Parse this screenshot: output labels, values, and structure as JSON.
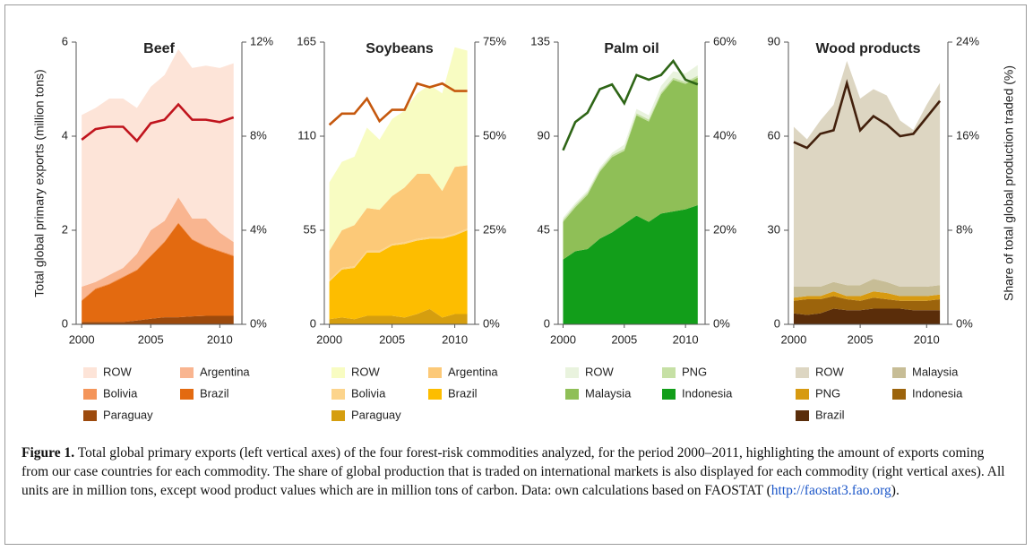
{
  "chart_data": [
    {
      "type": "area",
      "title": "Beef",
      "ylabel": "Total global primary exports (million tons)",
      "x": [
        2000,
        2001,
        2002,
        2003,
        2004,
        2005,
        2006,
        2007,
        2008,
        2009,
        2010,
        2011
      ],
      "xlim": [
        1999.6,
        2011.6
      ],
      "xticks": [
        2000,
        2005,
        2010
      ],
      "ylim": [
        0,
        6
      ],
      "yticks": [
        0,
        2,
        4,
        6
      ],
      "y2lim": [
        0,
        12
      ],
      "y2ticks": [
        {
          "value": 0,
          "label": "0%"
        },
        {
          "value": 4,
          "label": "4%"
        },
        {
          "value": 8,
          "label": "8%"
        },
        {
          "value": 12,
          "label": "12%"
        }
      ],
      "series": [
        {
          "name": "ROW",
          "color": "#fde4d8",
          "values": [
            3.65,
            3.7,
            3.75,
            3.6,
            3.1,
            3.05,
            3.1,
            3.15,
            3.2,
            3.25,
            3.5,
            3.8
          ]
        },
        {
          "name": "Argentina",
          "color": "#f9b590",
          "values": [
            0.28,
            0.13,
            0.18,
            0.18,
            0.33,
            0.53,
            0.43,
            0.53,
            0.43,
            0.58,
            0.38,
            0.28
          ]
        },
        {
          "name": "Bolivia",
          "color": "#f4955a",
          "values": [
            0.02,
            0.02,
            0.02,
            0.02,
            0.02,
            0.02,
            0.02,
            0.02,
            0.02,
            0.02,
            0.02,
            0.02
          ]
        },
        {
          "name": "Brazil",
          "color": "#e36a10",
          "values": [
            0.45,
            0.7,
            0.8,
            0.95,
            1.07,
            1.33,
            1.6,
            2.0,
            1.63,
            1.47,
            1.37,
            1.27
          ]
        },
        {
          "name": "Paraguay",
          "color": "#9c4a0d",
          "values": [
            0.05,
            0.05,
            0.05,
            0.05,
            0.08,
            0.12,
            0.15,
            0.15,
            0.17,
            0.18,
            0.18,
            0.18
          ]
        },
        {
          "axis": "y2",
          "color": "#c0141d",
          "values": [
            7.85,
            8.3,
            8.4,
            8.4,
            7.8,
            8.55,
            8.7,
            9.35,
            8.7,
            8.7,
            8.6,
            8.8
          ]
        }
      ]
    },
    {
      "type": "area",
      "title": "Soybeans",
      "x": [
        2000,
        2001,
        2002,
        2003,
        2004,
        2005,
        2006,
        2007,
        2008,
        2009,
        2010,
        2011
      ],
      "xlim": [
        1999.6,
        2011.6
      ],
      "xticks": [
        2000,
        2005,
        2010
      ],
      "ylim": [
        0,
        165
      ],
      "yticks": [
        0,
        55,
        110,
        165
      ],
      "y2lim": [
        0,
        75
      ],
      "y2ticks": [
        {
          "value": 0,
          "label": "0%"
        },
        {
          "value": 25,
          "label": "25%"
        },
        {
          "value": 50,
          "label": "50%"
        },
        {
          "value": 75,
          "label": "75%"
        }
      ],
      "series": [
        {
          "name": "ROW",
          "color": "#f8fcc2",
          "values": [
            40,
            40,
            40,
            47,
            41,
            45,
            45,
            47,
            52,
            57,
            70,
            67
          ]
        },
        {
          "name": "Argentina",
          "color": "#fcc978",
          "values": [
            17,
            22,
            24,
            25,
            24,
            28,
            32,
            38,
            37,
            27,
            39,
            37
          ]
        },
        {
          "name": "Bolivia",
          "color": "#fcd48c",
          "values": [
            1,
            1,
            1,
            1,
            1,
            1,
            1,
            1,
            1,
            1,
            1,
            1
          ]
        },
        {
          "name": "Brazil",
          "color": "#fdbd00",
          "values": [
            22,
            28,
            30,
            37,
            37,
            41,
            43,
            43,
            41,
            46,
            46,
            49
          ]
        },
        {
          "name": "Paraguay",
          "color": "#d59e0f",
          "values": [
            3,
            4,
            3,
            5,
            5,
            5,
            4,
            6,
            9,
            4,
            6,
            6
          ]
        },
        {
          "axis": "y2",
          "color": "#c5580e",
          "values": [
            53,
            56,
            56,
            60,
            54,
            57,
            57,
            64,
            63,
            64,
            62,
            62
          ]
        }
      ]
    },
    {
      "type": "area",
      "title": "Palm oil",
      "x": [
        2000,
        2001,
        2002,
        2003,
        2004,
        2005,
        2006,
        2007,
        2008,
        2009,
        2010,
        2011
      ],
      "xlim": [
        1999.6,
        2011.6
      ],
      "xticks": [
        2000,
        2005,
        2010
      ],
      "ylim": [
        0,
        135
      ],
      "yticks": [
        0,
        45,
        90,
        135
      ],
      "y2lim": [
        0,
        60
      ],
      "y2ticks": [
        {
          "value": 0,
          "label": "0%"
        },
        {
          "value": 20,
          "label": "20%"
        },
        {
          "value": 40,
          "label": "40%"
        },
        {
          "value": 60,
          "label": "60%"
        }
      ],
      "series": [
        {
          "name": "ROW",
          "color": "#e9f3de",
          "values": [
            1,
            1,
            1,
            1,
            1,
            2,
            2,
            2,
            3,
            3,
            4,
            5
          ]
        },
        {
          "name": "PNG",
          "color": "#c6e0a5",
          "values": [
            1,
            1,
            1,
            1,
            1,
            1,
            1,
            1,
            1,
            1,
            1,
            1
          ]
        },
        {
          "name": "Malaysia",
          "color": "#8fbf57",
          "values": [
            18,
            21,
            26,
            32,
            36,
            35,
            48,
            48,
            57,
            63,
            60,
            61
          ]
        },
        {
          "name": "Indonesia",
          "color": "#129e1a",
          "values": [
            31,
            35,
            36,
            41,
            44,
            48,
            52,
            49,
            53,
            54,
            55,
            57
          ]
        },
        {
          "axis": "y2",
          "color": "#2e6516",
          "values": [
            37,
            43,
            45,
            50,
            51,
            47,
            53,
            52,
            53,
            56,
            52,
            51
          ]
        }
      ]
    },
    {
      "type": "area",
      "title": "Wood products",
      "y2label": "Share of total global production traded (%)",
      "x": [
        2000,
        2001,
        2002,
        2003,
        2004,
        2005,
        2006,
        2007,
        2008,
        2009,
        2010,
        2011
      ],
      "xlim": [
        1999.6,
        2011.6
      ],
      "xticks": [
        2000,
        2005,
        2010
      ],
      "ylim": [
        0,
        90
      ],
      "yticks": [
        0,
        30,
        60,
        90
      ],
      "y2lim": [
        0,
        24
      ],
      "y2ticks": [
        {
          "value": 0,
          "label": "0%"
        },
        {
          "value": 8,
          "label": "8%"
        },
        {
          "value": 16,
          "label": "16%"
        },
        {
          "value": 24,
          "label": "24%"
        }
      ],
      "series": [
        {
          "name": "ROW",
          "color": "#ddd6c2",
          "values": [
            51,
            47,
            53,
            56.5,
            71.5,
            59.5,
            60.5,
            59.5,
            53,
            50,
            58,
            64.5
          ]
        },
        {
          "name": "Malaysia",
          "color": "#c7bd96",
          "values": [
            3.5,
            3,
            3,
            3,
            3.5,
            3.5,
            4,
            3.5,
            3,
            3,
            3,
            3
          ]
        },
        {
          "name": "PNG",
          "color": "#d79a11",
          "values": [
            1,
            1,
            1,
            1.5,
            1,
            1.5,
            2,
            2,
            1.5,
            1.5,
            1.5,
            1.5
          ]
        },
        {
          "name": "Indonesia",
          "color": "#9c640c",
          "values": [
            4,
            5,
            4.5,
            4,
            3.5,
            3,
            3.5,
            3,
            2.5,
            3,
            3,
            3.5
          ]
        },
        {
          "name": "Brazil",
          "color": "#5a2d0a",
          "values": [
            3.5,
            3,
            3.5,
            5,
            4.5,
            4.5,
            5,
            5,
            5,
            4.5,
            4.5,
            4.5
          ]
        },
        {
          "axis": "y2",
          "color": "#42200c",
          "values": [
            15.5,
            15,
            16.2,
            16.5,
            20.5,
            16.5,
            17.7,
            17,
            16,
            16.2,
            17.6,
            19
          ]
        }
      ]
    }
  ],
  "caption": {
    "label": "Figure 1.",
    "text_before": " Total global primary exports (left vertical axes) of the four forest-risk commodities analyzed, for the period 2000–2011, highlighting the amount of exports coming from our case countries for each commodity. The share of global production that is traded on international markets is also displayed for each commodity (right vertical axes). All units are in million tons, except wood product values which are in million tons of carbon. Data: own calculations based on FAOSTAT (",
    "link": "http://faostat3.fao.org",
    "text_after": ")."
  }
}
